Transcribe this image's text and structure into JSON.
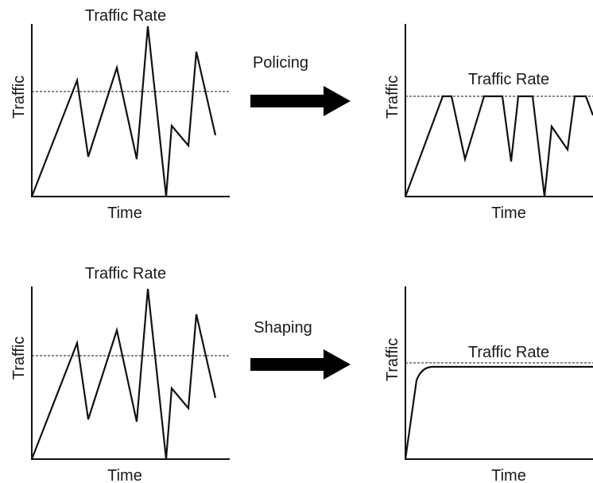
{
  "colors": {
    "line": "#111111",
    "arrow": "#000000",
    "background": "#ffffff"
  },
  "labels": {
    "traffic_rate": "Traffic Rate",
    "traffic": "Traffic",
    "time": "Time"
  },
  "operations": {
    "policing": "Policing",
    "shaping": "Shaping"
  },
  "icons": {
    "arrow": "right-arrow-icon"
  }
}
